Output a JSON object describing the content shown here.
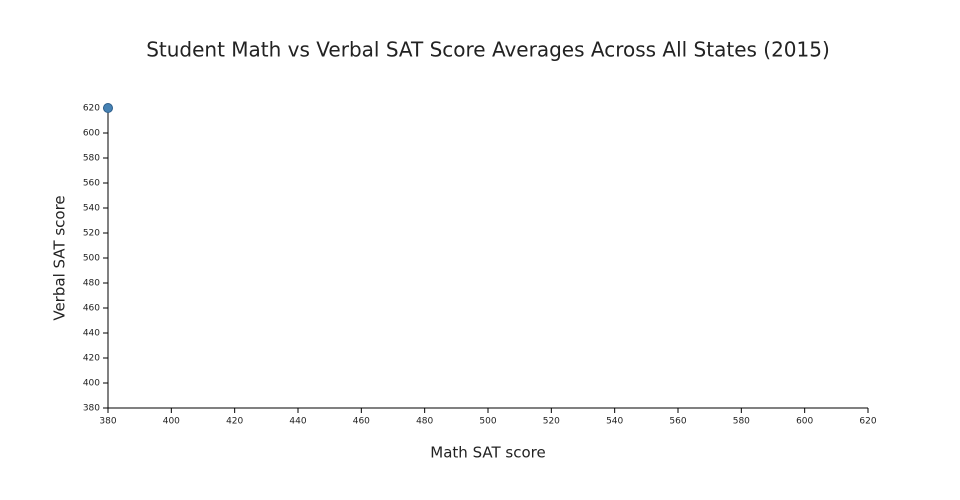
{
  "chart_data": {
    "type": "scatter",
    "title": "Student Math vs Verbal SAT Score Averages Across All States (2015)",
    "x_label": "Math SAT score",
    "y_label": "Verbal SAT score",
    "x": [
      380
    ],
    "values": [
      620
    ],
    "color": "#4682b4",
    "xlim": [
      380,
      620
    ],
    "xticks": [
      380,
      400,
      420,
      440,
      460,
      480,
      500,
      520,
      540,
      560,
      580,
      600,
      620
    ],
    "ylim": [
      380,
      620
    ],
    "yticks": [
      380,
      400,
      420,
      440,
      460,
      480,
      500,
      520,
      540,
      560,
      580,
      600,
      620
    ]
  }
}
